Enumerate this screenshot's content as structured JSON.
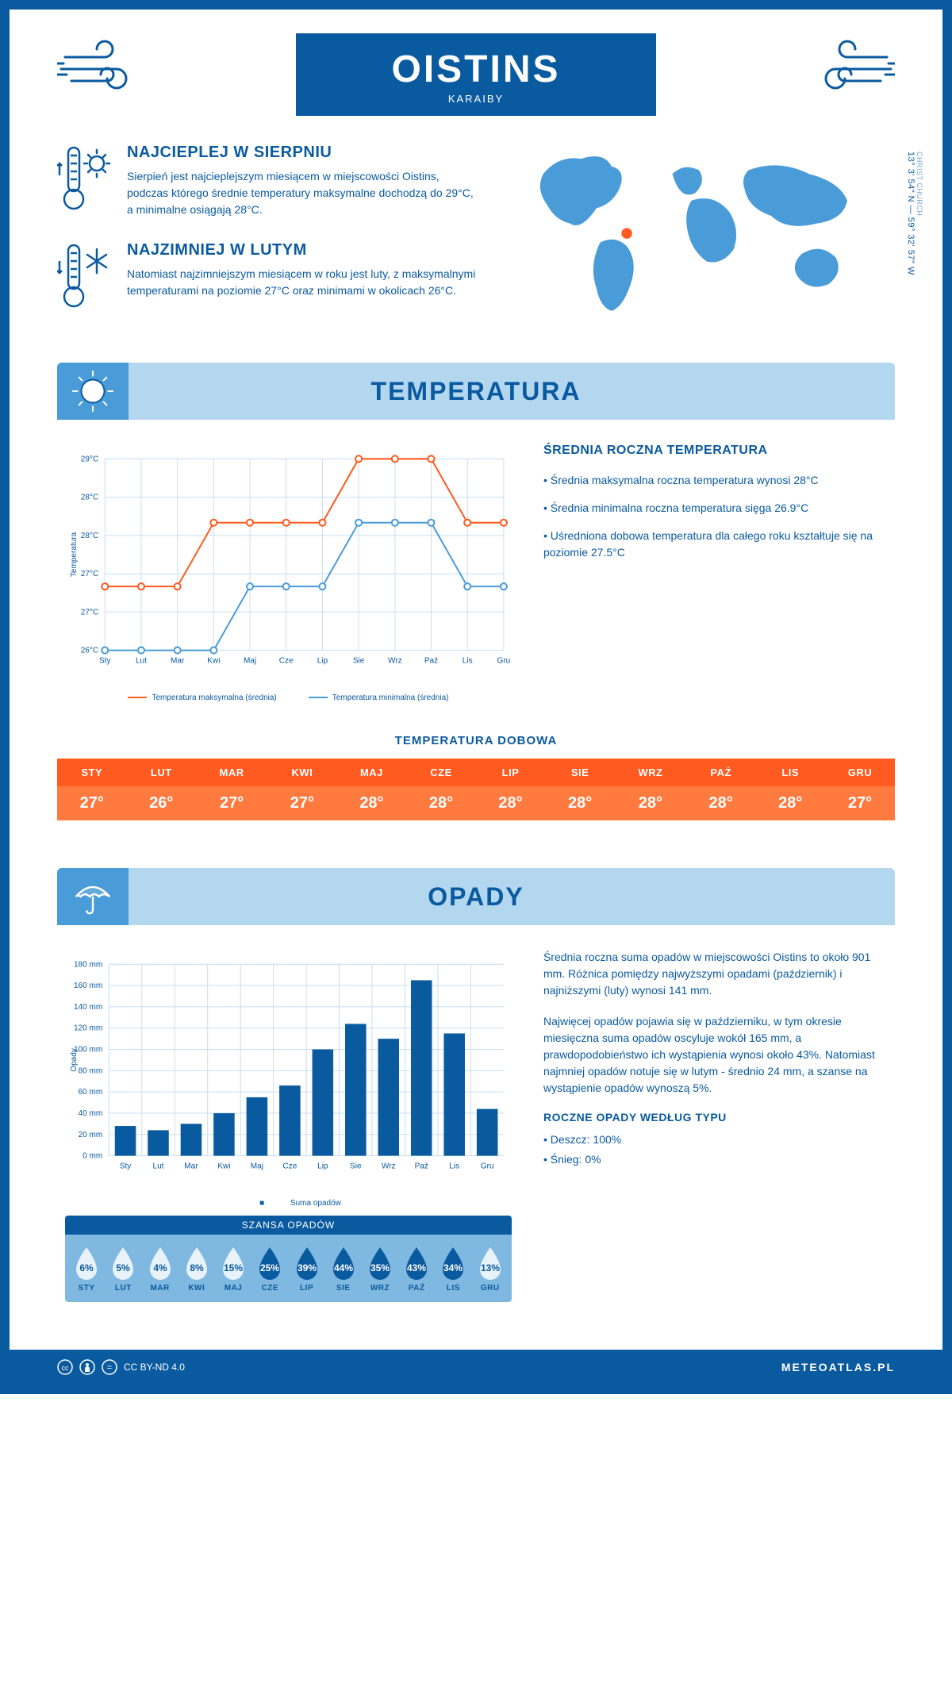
{
  "header": {
    "title": "OISTINS",
    "subtitle": "KARAIBY"
  },
  "coords": {
    "region": "CHRIST CHURCH",
    "lat": "13° 3' 54\" N",
    "lon": "59° 32' 57\" W"
  },
  "hot": {
    "title": "NAJCIEPLEJ W SIERPNIU",
    "text": "Sierpień jest najcieplejszym miesiącem w miejscowości Oistins, podczas którego średnie temperatury maksymalne dochodzą do 29°C, a minimalne osiągają 28°C."
  },
  "cold": {
    "title": "NAJZIMNIEJ W LUTYM",
    "text": "Natomiast najzimniejszym miesiącem w roku jest luty, z maksymalnymi temperaturami na poziomie 27°C oraz minimami w okolicach 26°C."
  },
  "months": [
    "Sty",
    "Lut",
    "Mar",
    "Kwi",
    "Maj",
    "Cze",
    "Lip",
    "Sie",
    "Wrz",
    "Paź",
    "Lis",
    "Gru"
  ],
  "months_upper": [
    "STY",
    "LUT",
    "MAR",
    "KWI",
    "MAJ",
    "CZE",
    "LIP",
    "SIE",
    "WRZ",
    "PAŹ",
    "LIS",
    "GRU"
  ],
  "temp_section": {
    "title": "TEMPERATURA",
    "ylabel": "Temperatura",
    "yticks": [
      "26°C",
      "27°C",
      "27°C",
      "28°C",
      "28°C",
      "29°C"
    ],
    "max_series": [
      27,
      27,
      27,
      28,
      28,
      28,
      28,
      29,
      29,
      29,
      28,
      28
    ],
    "min_series": [
      26,
      26,
      26,
      26,
      27,
      27,
      27,
      28,
      28,
      28,
      27,
      27
    ],
    "ylim": [
      26,
      29
    ],
    "legend_max": "Temperatura maksymalna (średnia)",
    "legend_min": "Temperatura minimalna (średnia)",
    "info_title": "ŚREDNIA ROCZNA TEMPERATURA",
    "b1": "• Średnia maksymalna roczna temperatura wynosi 28°C",
    "b2": "• Średnia minimalna roczna temperatura sięga 26.9°C",
    "b3": "• Uśredniona dobowa temperatura dla całego roku kształtuje się na poziomie 27.5°C"
  },
  "daily": {
    "title": "TEMPERATURA DOBOWA",
    "values": [
      "27°",
      "26°",
      "27°",
      "27°",
      "28°",
      "28°",
      "28°",
      "28°",
      "28°",
      "28°",
      "28°",
      "27°"
    ]
  },
  "precip_section": {
    "title": "OPADY",
    "ylabel": "Opady",
    "yticks": [
      0,
      20,
      40,
      60,
      80,
      100,
      120,
      140,
      160,
      180
    ],
    "values": [
      28,
      24,
      30,
      40,
      55,
      66,
      100,
      124,
      110,
      165,
      115,
      44
    ],
    "ylim": [
      0,
      180
    ],
    "bar_legend": "Suma opadów",
    "p1": "Średnia roczna suma opadów w miejscowości Oistins to około 901 mm. Różnica pomiędzy najwyższymi opadami (październik) i najniższymi (luty) wynosi 141 mm.",
    "p2": "Najwięcej opadów pojawia się w październiku, w tym okresie miesięczna suma opadów oscyluje wokół 165 mm, a prawdopodobieństwo ich wystąpienia wynosi około 43%. Natomiast najmniej opadów notuje się w lutym - średnio 24 mm, a szanse na wystąpienie opadów wynoszą 5%."
  },
  "chance": {
    "title": "SZANSA OPADÓW",
    "values": [
      6,
      5,
      4,
      8,
      15,
      25,
      39,
      44,
      35,
      43,
      34,
      13
    ],
    "dark_threshold": 20
  },
  "type": {
    "title": "ROCZNE OPADY WEDŁUG TYPU",
    "rain": "• Deszcz: 100%",
    "snow": "• Śnieg: 0%"
  },
  "footer": {
    "license": "CC BY-ND 4.0",
    "brand": "METEOATLAS.PL"
  },
  "colors": {
    "primary": "#0a5aa0",
    "light": "#b4d7f0",
    "mid": "#4a9cd8",
    "orange": "#ff5a1f",
    "orange2": "#ff7a3f",
    "grid": "#c8dff0"
  }
}
